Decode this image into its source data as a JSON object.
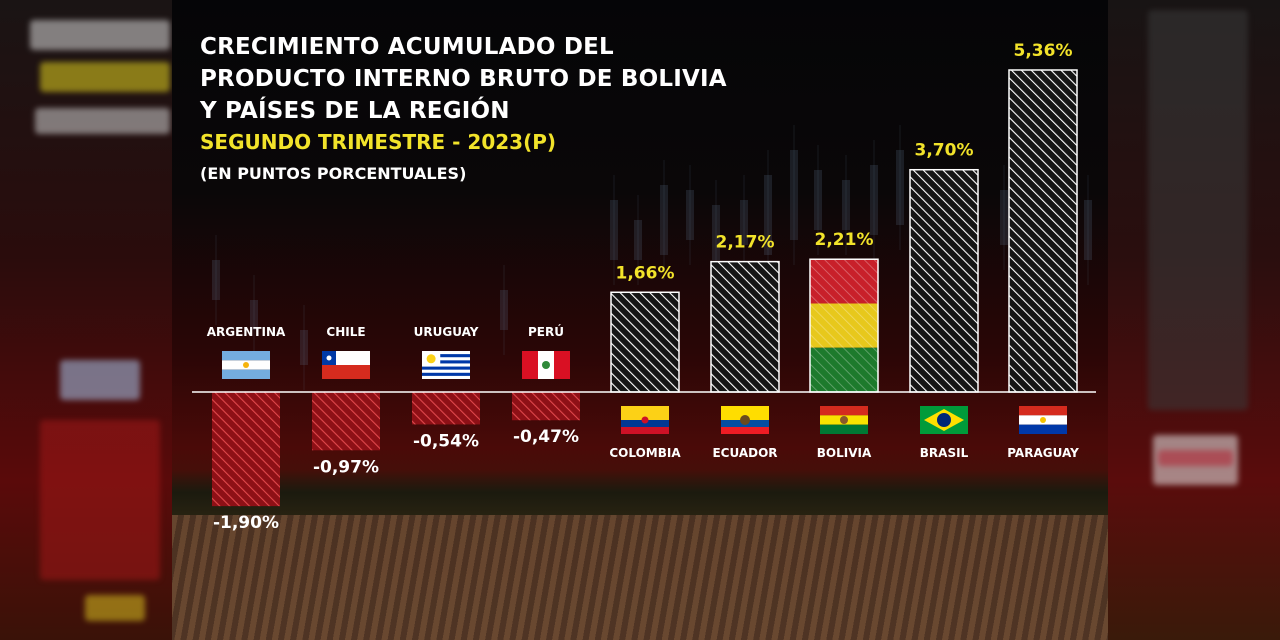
{
  "title": {
    "line1": "CRECIMIENTO ACUMULADO DEL",
    "line2": "PRODUCTO INTERNO BRUTO DE BOLIVIA",
    "line3": "Y PAÍSES DE LA REGIÓN"
  },
  "subtitle": "SEGUNDO TRIMESTRE - 2023(P)",
  "units": "(EN PUNTOS PORCENTUALES)",
  "colors": {
    "value_label": "#f2e32a",
    "title": "#ffffff",
    "negative_bar": "#c0262c",
    "positive_bar_hatch": "#ffffff"
  },
  "chart_data": {
    "type": "bar",
    "title": "CRECIMIENTO ACUMULADO DEL PRODUCTO INTERNO BRUTO DE BOLIVIA Y PAÍSES DE LA REGIÓN",
    "categories": [
      "ARGENTINA",
      "CHILE",
      "URUGUAY",
      "PERÚ",
      "COLOMBIA",
      "ECUADOR",
      "BOLIVIA",
      "BRASIL",
      "PARAGUAY"
    ],
    "values": [
      -1.9,
      -0.97,
      -0.54,
      -0.47,
      1.66,
      2.17,
      2.21,
      3.7,
      5.36
    ],
    "labels": [
      "-1,90%",
      "-0,97%",
      "-0,54%",
      "-0,47%",
      "1,66%",
      "2,17%",
      "2,21%",
      "3,70%",
      "5,36%"
    ],
    "flags": [
      "argentina-flag",
      "chile-flag",
      "uruguay-flag",
      "peru-flag",
      "colombia-flag",
      "ecuador-flag",
      "bolivia-flag",
      "brasil-flag",
      "paraguay-flag"
    ],
    "xlabel": "",
    "ylabel": "",
    "ylim": [
      -1.9,
      5.36
    ],
    "grid": false,
    "legend": "none"
  }
}
